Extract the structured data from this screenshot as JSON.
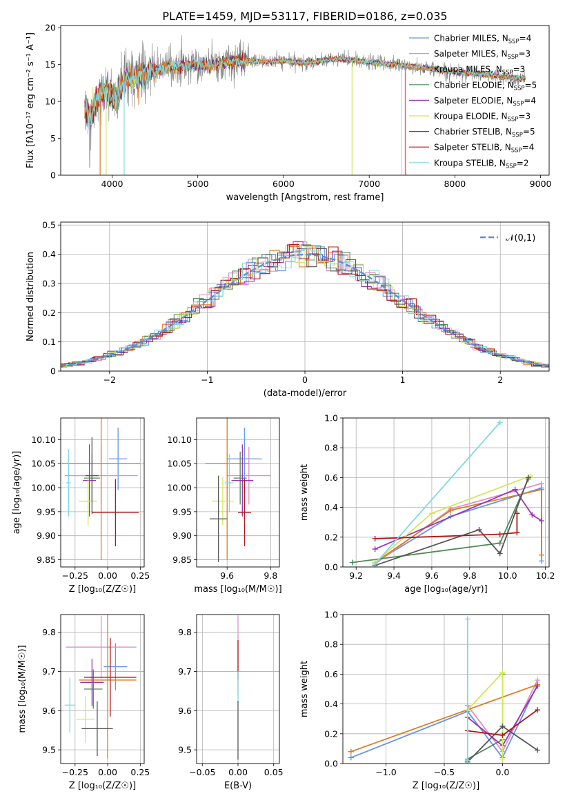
{
  "figure": {
    "title": "PLATE=1459, MJD=53117, FIBERID=0186, z=0.035"
  },
  "models": [
    {
      "name": "Chabrier MILES",
      "nssp": "4",
      "color": "#6495ed"
    },
    {
      "name": "Salpeter MILES",
      "nssp": "3",
      "color": "#e58cc8"
    },
    {
      "name": "Kroupa MILES",
      "nssp": "3",
      "color": "#e07b22"
    },
    {
      "name": "Chabrier ELODIE",
      "nssp": "5",
      "color": "#4f8a5a"
    },
    {
      "name": "Salpeter ELODIE",
      "nssp": "4",
      "color": "#9a32b4"
    },
    {
      "name": "Kroupa ELODIE",
      "nssp": "3",
      "color": "#cfe85a"
    },
    {
      "name": "Chabrier STELIB",
      "nssp": "5",
      "color": "#555555"
    },
    {
      "name": "Salpeter STELIB",
      "nssp": "4",
      "color": "#b01818"
    },
    {
      "name": "Kroupa STELIB",
      "nssp": "2",
      "color": "#7fd9e0"
    }
  ],
  "chart_data": [
    {
      "type": "line",
      "id": "spectrum",
      "title": "PLATE=1459, MJD=53117, FIBERID=0186, z=0.035",
      "xlabel": "wavelength [Angstrom, rest frame]",
      "ylabel": "Flux [fλ10⁻¹⁷ erg cm⁻² s⁻¹ A⁻¹]",
      "xlim": [
        3400,
        9100
      ],
      "ylim": [
        0,
        20.3
      ],
      "xticks": [
        4000,
        5000,
        6000,
        7000,
        8000,
        9000
      ],
      "yticks": [
        0,
        5,
        10,
        15,
        20
      ],
      "data_range": [
        3680,
        8830
      ],
      "continuum": {
        "x": [
          3680,
          3750,
          3850,
          3950,
          4050,
          4150,
          4300,
          4450,
          4600,
          4800,
          5000,
          5200,
          5400,
          5600,
          5800,
          6000,
          6200,
          6400,
          6600,
          6800,
          7000,
          7200,
          7400,
          7600,
          7800,
          8000,
          8200,
          8400,
          8600,
          8830
        ],
        "y": [
          9.0,
          8.0,
          11.0,
          11.5,
          10.5,
          13.0,
          13.5,
          14.0,
          14.5,
          14.8,
          15.0,
          15.0,
          15.4,
          15.5,
          15.4,
          15.5,
          15.2,
          15.4,
          15.8,
          15.6,
          15.3,
          15.1,
          14.9,
          14.6,
          14.3,
          14.0,
          13.8,
          13.6,
          13.3,
          13.0
        ]
      },
      "fit_end": 8820,
      "dropouts": [
        {
          "model": 2,
          "x": 3860
        },
        {
          "model": 5,
          "x": 3930
        },
        {
          "model": 8,
          "x": 4140
        },
        {
          "model": 5,
          "x": 6800
        },
        {
          "model": 5,
          "x": 7380
        },
        {
          "model": 1,
          "x": 7420
        },
        {
          "model": 2,
          "x": 7425
        }
      ]
    },
    {
      "type": "histogram",
      "id": "residuals",
      "xlabel": "(data-model)/error",
      "ylabel": "Normed distribution",
      "xlim": [
        -2.5,
        2.5
      ],
      "ylim": [
        0,
        0.51
      ],
      "xticks": [
        -2,
        -1,
        0,
        1,
        2
      ],
      "yticks": [
        0,
        0.1,
        0.2,
        0.3,
        0.4,
        0.5
      ],
      "bin_width": 0.1,
      "reference_label": "𝒩(0,1)",
      "reference_color": "#5b8edb"
    },
    {
      "type": "scatter",
      "id": "age_vs_Z",
      "xlabel": "Z [log₁₀(Z/Z☉)]",
      "ylabel": "age  [log₁₀(age/yr)]",
      "xlim": [
        -0.36,
        0.28
      ],
      "ylim": [
        9.835,
        10.145
      ],
      "xticks": [
        -0.25,
        0,
        0.25
      ],
      "xticklabels": [
        "−0.25",
        "0.00",
        "0.25"
      ],
      "yticks": [
        9.85,
        9.9,
        9.95,
        10.0,
        10.05,
        10.1
      ],
      "yticklabels": [
        "9.85",
        "9.90",
        "9.95",
        "10.00",
        "10.05",
        "10.10"
      ],
      "points": [
        {
          "m": 0,
          "x": 0.08,
          "xe": 0.07,
          "y": 10.06,
          "ye": 0.065
        },
        {
          "m": 1,
          "x": -0.05,
          "xe": 0.28,
          "y": 10.025,
          "ye": 0.06
        },
        {
          "m": 2,
          "x": -0.05,
          "xe": 0.3,
          "y": 10.05,
          "ye": 0.2
        },
        {
          "m": 3,
          "x": -0.12,
          "xe": 0.06,
          "y": 10.02,
          "ye": 0.05
        },
        {
          "m": 4,
          "x": -0.14,
          "xe": 0.05,
          "y": 10.015,
          "ye": 0.075
        },
        {
          "m": 5,
          "x": -0.15,
          "xe": 0.07,
          "y": 9.972,
          "ye": 0.05
        },
        {
          "m": 6,
          "x": -0.12,
          "xe": 0.05,
          "y": 10.025,
          "ye": 0.08
        },
        {
          "m": 7,
          "x": 0.06,
          "xe": 0.18,
          "y": 9.948,
          "ye": 0.07
        },
        {
          "m": 8,
          "x": -0.3,
          "xe": 0.02,
          "y": 10.01,
          "ye": 0.07
        }
      ]
    },
    {
      "type": "scatter",
      "id": "age_vs_mass",
      "xlabel": "mass [log₁₀(M/M☉)]",
      "ylabel": "",
      "xlim": [
        9.46,
        9.84
      ],
      "ylim": [
        9.835,
        10.145
      ],
      "xticks": [
        9.6,
        9.8
      ],
      "xticklabels": [
        "9.6",
        "9.8"
      ],
      "yticks": [
        9.85,
        9.9,
        9.95,
        10.0,
        10.05,
        10.1
      ],
      "yticklabels": [
        "9.85",
        "9.90",
        "9.95",
        "10.00",
        "10.05",
        "10.10"
      ],
      "points": [
        {
          "m": 0,
          "x": 9.68,
          "xe": 0.08,
          "y": 10.06,
          "ye": 0.065
        },
        {
          "m": 1,
          "x": 9.7,
          "xe": 0.1,
          "y": 10.025,
          "ye": 0.06
        },
        {
          "m": 2,
          "x": 9.6,
          "xe": 0.1,
          "y": 10.05,
          "ye": 0.2
        },
        {
          "m": 3,
          "x": 9.66,
          "xe": 0.03,
          "y": 10.02,
          "ye": 0.055
        },
        {
          "m": 4,
          "x": 9.67,
          "xe": 0.05,
          "y": 10.015,
          "ye": 0.075
        },
        {
          "m": 5,
          "x": 9.58,
          "xe": 0.05,
          "y": 9.972,
          "ye": 0.05
        },
        {
          "m": 6,
          "x": 9.56,
          "xe": 0.04,
          "y": 9.935,
          "ye": 0.09
        },
        {
          "m": 7,
          "x": 9.68,
          "xe": 0.03,
          "y": 9.948,
          "ye": 0.07
        },
        {
          "m": 8,
          "x": 9.61,
          "xe": 0.02,
          "y": 10.01,
          "ye": 0.06
        }
      ]
    },
    {
      "type": "line",
      "id": "massweight_vs_age",
      "xlabel": "age  [log₁₀(age/yr)]",
      "ylabel": "mass weight",
      "xlim": [
        9.13,
        10.22
      ],
      "ylim": [
        0,
        1.0
      ],
      "xticks": [
        9.2,
        9.4,
        9.6,
        9.8,
        10.0,
        10.2
      ],
      "xticklabels": [
        "9.2",
        "9.4",
        "9.6",
        "9.8",
        "10.0",
        "10.2"
      ],
      "yticks": [
        0,
        0.2,
        0.4,
        0.6,
        0.8,
        1.0
      ],
      "yticklabels": [
        "0.0",
        "0.2",
        "0.4",
        "0.6",
        "0.8",
        "1.0"
      ],
      "series": [
        {
          "m": 0,
          "x": [
            9.3,
            9.7,
            10.18,
            10.18
          ],
          "y": [
            0.03,
            0.34,
            0.53,
            0.04
          ]
        },
        {
          "m": 1,
          "x": [
            9.3,
            9.7,
            10.18,
            10.18
          ],
          "y": [
            0.02,
            0.39,
            0.56,
            0.08
          ]
        },
        {
          "m": 2,
          "x": [
            9.3,
            9.7,
            10.18,
            10.18
          ],
          "y": [
            0.03,
            0.38,
            0.52,
            0.08
          ]
        },
        {
          "m": 3,
          "x": [
            9.18,
            9.96,
            10.11,
            10.11
          ],
          "y": [
            0.03,
            0.16,
            0.59,
            0.6
          ]
        },
        {
          "m": 4,
          "x": [
            9.3,
            10.04,
            10.13,
            10.18
          ],
          "y": [
            0.12,
            0.52,
            0.35,
            0.31
          ]
        },
        {
          "m": 5,
          "x": [
            9.3,
            9.6,
            10.12
          ],
          "y": [
            0.03,
            0.36,
            0.61
          ]
        },
        {
          "m": 6,
          "x": [
            9.3,
            9.85,
            9.96,
            10.11
          ],
          "y": [
            0.01,
            0.25,
            0.09,
            0.6
          ]
        },
        {
          "m": 7,
          "x": [
            9.3,
            9.96,
            10.05,
            10.05
          ],
          "y": [
            0.19,
            0.22,
            0.23,
            0.36
          ]
        },
        {
          "m": 8,
          "x": [
            9.3,
            9.96
          ],
          "y": [
            0.02,
            0.97
          ]
        }
      ]
    },
    {
      "type": "scatter",
      "id": "mass_vs_Z",
      "xlabel": "Z [log₁₀(Z/Z☉)]",
      "ylabel": "mass [log₁₀(M/M☉)]",
      "xlim": [
        -0.36,
        0.28
      ],
      "ylim": [
        9.465,
        9.845
      ],
      "xticks": [
        -0.25,
        0,
        0.25
      ],
      "xticklabels": [
        "−0.25",
        "0.00",
        "0.25"
      ],
      "yticks": [
        9.5,
        9.6,
        9.7,
        9.8
      ],
      "yticklabels": [
        "9.5",
        "9.6",
        "9.7",
        "9.8"
      ],
      "points": [
        {
          "m": 0,
          "x": 0.06,
          "xe": 0.09,
          "y": 9.712,
          "ye": 0.06
        },
        {
          "m": 1,
          "x": -0.05,
          "xe": 0.27,
          "y": 9.762,
          "ye": 0.08
        },
        {
          "m": 2,
          "x": 0.0,
          "xe": 0.22,
          "y": 9.678,
          "ye": 0.2
        },
        {
          "m": 3,
          "x": -0.11,
          "xe": 0.07,
          "y": 9.655,
          "ye": 0.05
        },
        {
          "m": 4,
          "x": -0.12,
          "xe": 0.09,
          "y": 9.672,
          "ye": 0.06
        },
        {
          "m": 5,
          "x": -0.17,
          "xe": 0.07,
          "y": 9.578,
          "ye": 0.06
        },
        {
          "m": 6,
          "x": -0.08,
          "xe": 0.12,
          "y": 9.554,
          "ye": 0.07
        },
        {
          "m": 7,
          "x": 0.02,
          "xe": 0.2,
          "y": 9.685,
          "ye": 0.1
        },
        {
          "m": 8,
          "x": -0.29,
          "xe": 0.04,
          "y": 9.614,
          "ye": 0.07
        }
      ]
    },
    {
      "type": "scatter",
      "id": "mass_vs_ebv",
      "xlabel": "E(B-V)",
      "ylabel": "",
      "xlim": [
        -0.058,
        0.058
      ],
      "ylim": [
        9.465,
        9.845
      ],
      "xticks": [
        -0.05,
        0,
        0.05
      ],
      "xticklabels": [
        "−0.05",
        "0.00",
        "0.05"
      ],
      "yticks": [
        9.5,
        9.6,
        9.7,
        9.8
      ],
      "yticklabels": [
        "9.5",
        "9.6",
        "9.7",
        "9.8"
      ],
      "points": [
        {
          "m": 1,
          "x": 0,
          "xe": 0,
          "y": 9.74,
          "ye": 0.1
        },
        {
          "m": 7,
          "x": 0,
          "xe": 0,
          "y": 9.73,
          "ye": 0.05
        },
        {
          "m": 8,
          "x": 0,
          "xe": 0,
          "y": 9.66,
          "ye": 0.04
        },
        {
          "m": 6,
          "x": 0,
          "xe": 0,
          "y": 9.55,
          "ye": 0.075
        }
      ]
    },
    {
      "type": "line",
      "id": "massweight_vs_Z",
      "xlabel": "Z [log₁₀(Z/Z☉)]",
      "ylabel": "mass weight",
      "xlim": [
        -1.37,
        0.4
      ],
      "ylim": [
        0,
        1.0
      ],
      "xticks": [
        -1.0,
        -0.5,
        0.0
      ],
      "xticklabels": [
        "−1.0",
        "−0.5",
        "0.0"
      ],
      "yticks": [
        0,
        0.2,
        0.4,
        0.6,
        0.8,
        1.0
      ],
      "yticklabels": [
        "0.0",
        "0.2",
        "0.4",
        "0.6",
        "0.8",
        "1.0"
      ],
      "series": [
        {
          "m": 0,
          "x": [
            -1.3,
            -0.3,
            0.0,
            0.3
          ],
          "y": [
            0.04,
            0.35,
            0.04,
            0.53
          ]
        },
        {
          "m": 1,
          "x": [
            -0.3,
            0.0,
            0.3
          ],
          "y": [
            0.39,
            0.08,
            0.56
          ]
        },
        {
          "m": 2,
          "x": [
            -1.3,
            0.3
          ],
          "y": [
            0.08,
            0.53
          ]
        },
        {
          "m": 3,
          "x": [
            -0.3,
            0.0,
            0.0
          ],
          "y": [
            0.03,
            0.16,
            0.6
          ]
        },
        {
          "m": 4,
          "x": [
            -0.3,
            0.0,
            0.3
          ],
          "y": [
            0.31,
            0.12,
            0.52
          ]
        },
        {
          "m": 5,
          "x": [
            -0.3,
            0.0,
            0.0
          ],
          "y": [
            0.36,
            0.61,
            0.03
          ]
        },
        {
          "m": 6,
          "x": [
            -0.3,
            0.0,
            0.3
          ],
          "y": [
            0.01,
            0.25,
            0.09
          ]
        },
        {
          "m": 7,
          "x": [
            -0.3,
            0.0,
            0.3
          ],
          "y": [
            0.22,
            0.19,
            0.36
          ]
        },
        {
          "m": 8,
          "x": [
            -0.3,
            -0.3
          ],
          "y": [
            0.02,
            0.97
          ]
        }
      ]
    }
  ]
}
